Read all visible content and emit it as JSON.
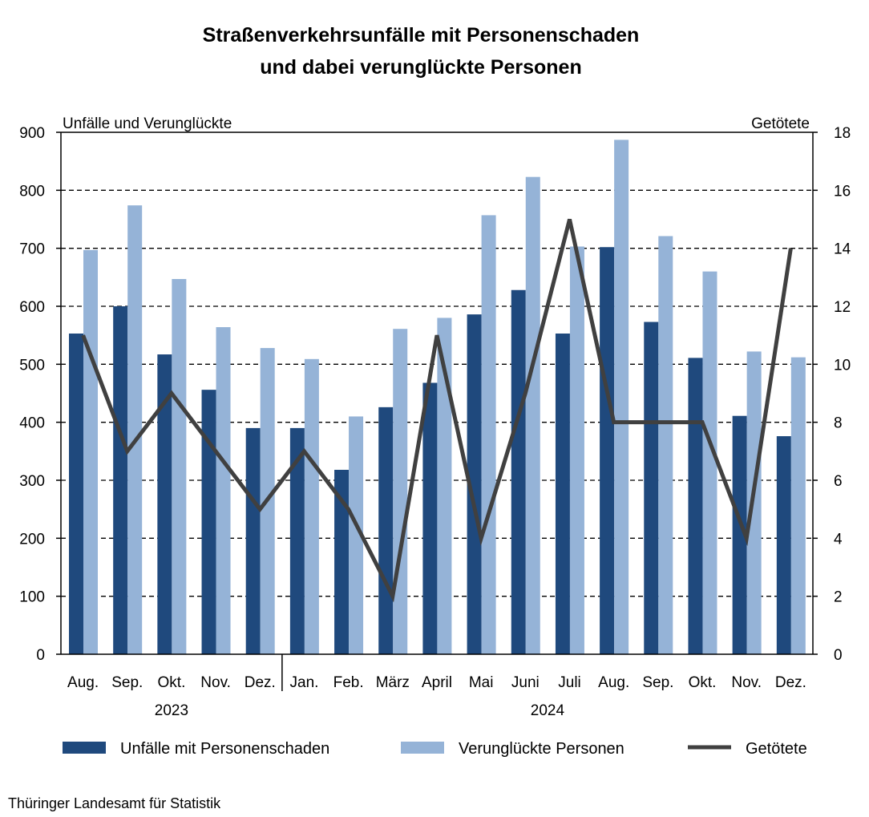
{
  "chart_data": {
    "type": "bar",
    "title_line1": "Straßenverkehrsunfälle mit Personenschaden",
    "title_line2": "und dabei verunglückte Personen",
    "ylabel_left": "Unfälle und Verunglückte",
    "ylabel_right": "Getötete",
    "ylim_left": [
      0,
      900
    ],
    "ylim_right": [
      0,
      18
    ],
    "yticks_left": [
      0,
      100,
      200,
      300,
      400,
      500,
      600,
      700,
      800,
      900
    ],
    "yticks_right": [
      0,
      2,
      4,
      6,
      8,
      10,
      12,
      14,
      16,
      18
    ],
    "grid": "horizontal dashed",
    "legend_position": "bottom",
    "categories": [
      "Aug.",
      "Sep.",
      "Okt.",
      "Nov.",
      "Dez.",
      "Jan.",
      "Feb.",
      "März",
      "April",
      "Mai",
      "Juni",
      "Juli",
      "Aug.",
      "Sep.",
      "Okt.",
      "Nov.",
      "Dez."
    ],
    "year_groups": [
      {
        "label": "2023",
        "from_index": 0,
        "to_index": 4
      },
      {
        "label": "2024",
        "from_index": 5,
        "to_index": 16
      }
    ],
    "series": [
      {
        "name": "Unfälle mit Personenschaden",
        "type": "bar",
        "axis": "left",
        "color": "#1f497d",
        "values": [
          553,
          600,
          517,
          456,
          390,
          390,
          318,
          426,
          468,
          586,
          628,
          553,
          702,
          573,
          511,
          411,
          376
        ]
      },
      {
        "name": "Verunglückte Personen",
        "type": "bar",
        "axis": "left",
        "color": "#95b3d7",
        "values": [
          697,
          774,
          647,
          564,
          528,
          509,
          410,
          561,
          580,
          757,
          823,
          703,
          887,
          721,
          660,
          522,
          512
        ]
      },
      {
        "name": "Getötete",
        "type": "line",
        "axis": "right",
        "color": "#404040",
        "values": [
          11,
          7,
          9,
          7,
          5,
          7,
          5,
          2,
          11,
          4,
          9,
          15,
          8,
          8,
          8,
          4,
          14
        ]
      }
    ]
  },
  "source": "Thüringer Landesamt für Statistik"
}
